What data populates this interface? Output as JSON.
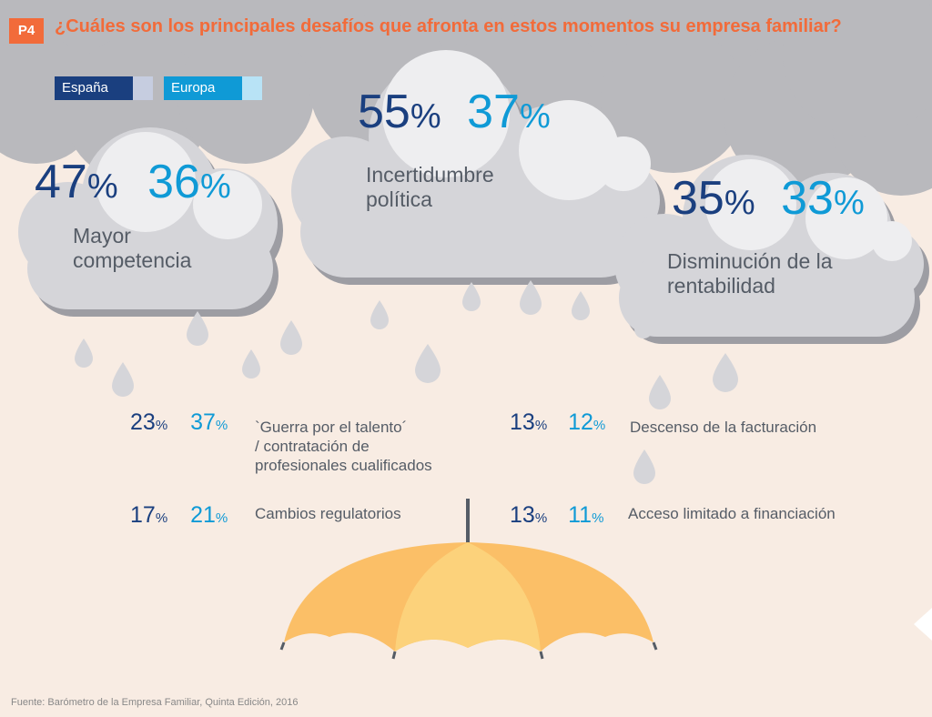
{
  "question_id": "P4",
  "title": "¿Cuáles son los principales desafíos que afronta en estos momentos su empresa familiar?",
  "legend": {
    "espana": "España",
    "europa": "Europa"
  },
  "colors": {
    "espana": "#1a3f7f",
    "europa": "#0f9ad6",
    "accent": "#f26b3a",
    "umbrella": "#fbbf67",
    "cloud": "#d5d5d9"
  },
  "chart_data": {
    "type": "table",
    "series": [
      {
        "name": "España",
        "values": [
          47,
          55,
          35,
          23,
          13,
          17,
          13
        ]
      },
      {
        "name": "Europa",
        "values": [
          36,
          37,
          33,
          37,
          12,
          21,
          11
        ]
      }
    ],
    "categories": [
      "Mayor competencia",
      "Incertidumbre política",
      "Disminución de la rentabilidad",
      "`Guerra por el talento´ / contratación de profesionales cualificados",
      "Descenso de la facturación",
      "Cambios regulatorios",
      "Acceso limitado a financiación"
    ],
    "unit": "%"
  },
  "challenges": [
    {
      "es": "47",
      "eu": "36",
      "label_lines": [
        "Mayor",
        "competencia"
      ]
    },
    {
      "es": "55",
      "eu": "37",
      "label_lines": [
        "Incertidumbre",
        "política"
      ]
    },
    {
      "es": "35",
      "eu": "33",
      "label_lines": [
        "Disminución de la",
        "rentabilidad"
      ]
    },
    {
      "es": "23",
      "eu": "37",
      "label_lines": [
        "`Guerra por el talento´",
        "/ contratación de",
        "profesionales cualificados"
      ]
    },
    {
      "es": "13",
      "eu": "12",
      "label_lines": [
        "Descenso de la facturación"
      ]
    },
    {
      "es": "17",
      "eu": "21",
      "label_lines": [
        "Cambios regulatorios"
      ]
    },
    {
      "es": "13",
      "eu": "11",
      "label_lines": [
        "Acceso limitado a financiación"
      ]
    }
  ],
  "percent_sign": "%",
  "source": "Fuente: Barómetro de la Empresa Familiar, Quinta Edición, 2016"
}
